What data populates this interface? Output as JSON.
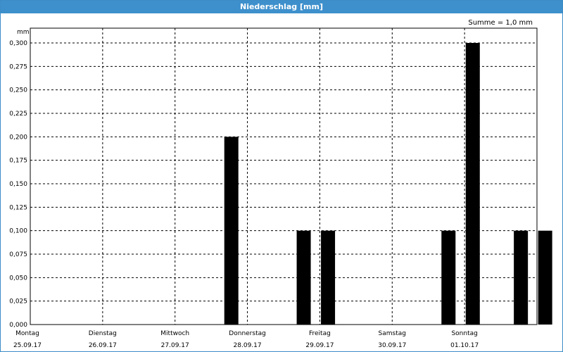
{
  "window": {
    "title": "Niederschlag [mm]"
  },
  "summary": "Summe = 1,0 mm",
  "colors": {
    "titlebar": "#3e90cc",
    "bar": "#000000",
    "grid": "#000000"
  },
  "chart_data": {
    "type": "bar",
    "title": "Niederschlag [mm]",
    "ylabel": "mm",
    "ylim": [
      0,
      0.3
    ],
    "yticks": [
      0,
      0.025,
      0.05,
      0.075,
      0.1,
      0.125,
      0.15,
      0.175,
      0.2,
      0.225,
      0.25,
      0.275,
      0.3
    ],
    "ytick_labels": [
      "0,000",
      "0,025",
      "0,050",
      "0,075",
      "0,100",
      "0,125",
      "0,150",
      "0,175",
      "0,200",
      "0,225",
      "0,250",
      "0,275",
      "0,300"
    ],
    "grid": true,
    "days": [
      {
        "weekday": "Montag",
        "date": "25.09.17"
      },
      {
        "weekday": "Dienstag",
        "date": "26.09.17"
      },
      {
        "weekday": "Mittwoch",
        "date": "27.09.17"
      },
      {
        "weekday": "Donnerstag",
        "date": "28.09.17"
      },
      {
        "weekday": "Freitag",
        "date": "29.09.17"
      },
      {
        "weekday": "Samstag",
        "date": "30.09.17"
      },
      {
        "weekday": "Sonntag",
        "date": "01.10.17"
      }
    ],
    "bars": [
      {
        "day": 2,
        "slot": 0,
        "value": 0.2
      },
      {
        "day": 3,
        "slot": 0,
        "value": 0.1
      },
      {
        "day": 3,
        "slot": 1,
        "value": 0.1
      },
      {
        "day": 5,
        "slot": 0,
        "value": 0.1
      },
      {
        "day": 5,
        "slot": 1,
        "value": 0.3
      },
      {
        "day": 6,
        "slot": 0,
        "value": 0.1
      },
      {
        "day": 6,
        "slot": 1,
        "value": 0.1
      }
    ]
  }
}
